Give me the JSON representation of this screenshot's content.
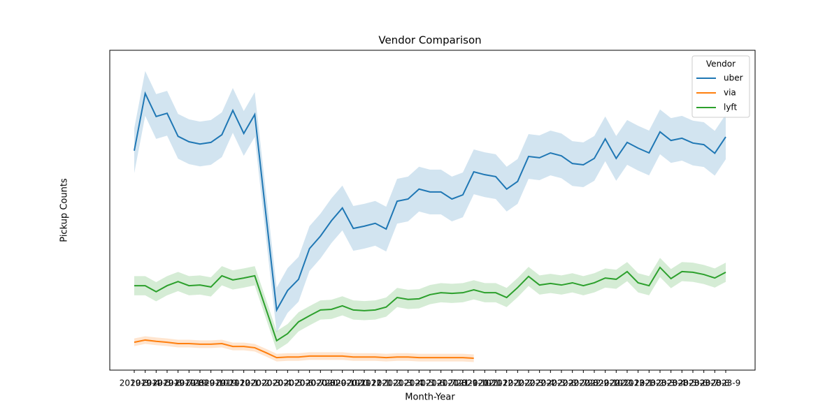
{
  "chart_data": {
    "type": "line",
    "title": "Vendor Comparison",
    "x_label": "Month-Year",
    "y_label": "Pickup Counts",
    "legend_title": "Vendor",
    "legend_position": "upper right",
    "categories": [
      "2019-3",
      "2019-4",
      "2019-5",
      "2019-6",
      "2019-7",
      "2019-8",
      "2019-9",
      "2019-10",
      "2019-11",
      "2019-12",
      "2020-1",
      "2020-2",
      "2020-3",
      "2020-4",
      "2020-5",
      "2020-6",
      "2020-7",
      "2020-8",
      "2020-9",
      "2020-10",
      "2020-11",
      "2020-12",
      "2021-1",
      "2021-2",
      "2021-3",
      "2021-4",
      "2021-5",
      "2021-6",
      "2021-7",
      "2021-8",
      "2021-9",
      "2021-10",
      "2021-11",
      "2021-12",
      "2022-1",
      "2022-2",
      "2022-3",
      "2022-4",
      "2022-5",
      "2022-6",
      "2022-7",
      "2022-8",
      "2022-9",
      "2022-10",
      "2022-11",
      "2022-12",
      "2023-1",
      "2023-2",
      "2023-3",
      "2023-4",
      "2023-5",
      "2023-6",
      "2023-7",
      "2023-8",
      "2023-9"
    ],
    "ylim": [
      0,
      100
    ],
    "series": [
      {
        "name": "uber",
        "color": "#1f77b4",
        "band": 7,
        "values": [
          68.6,
          86.5,
          79.3,
          80.3,
          73.1,
          71.4,
          70.7,
          71.2,
          73.6,
          81.2,
          74.0,
          79.9,
          49.3,
          18.8,
          24.9,
          28.4,
          38.0,
          41.9,
          46.7,
          50.7,
          44.3,
          45.0,
          45.9,
          44.1,
          52.8,
          53.5,
          56.6,
          55.7,
          55.7,
          53.5,
          54.8,
          62.0,
          61.1,
          60.5,
          56.6,
          59.0,
          66.8,
          66.4,
          67.9,
          67.0,
          64.6,
          64.2,
          66.2,
          72.3,
          66.2,
          71.2,
          69.4,
          67.9,
          74.5,
          71.8,
          72.5,
          71.0,
          70.5,
          67.8,
          72.9
        ]
      },
      {
        "name": "via",
        "color": "#ff7f0e",
        "band": 1.2,
        "values": [
          8.7,
          9.4,
          9.0,
          8.7,
          8.3,
          8.3,
          8.1,
          8.1,
          8.3,
          7.4,
          7.4,
          7.0,
          5.5,
          3.9,
          4.1,
          4.1,
          4.4,
          4.4,
          4.4,
          4.4,
          4.1,
          4.1,
          4.1,
          3.9,
          4.1,
          4.1,
          3.9,
          3.9,
          3.9,
          3.9,
          3.9,
          3.7,
          null,
          null,
          null,
          null,
          null,
          null,
          null,
          null,
          null,
          null,
          null,
          null,
          null,
          null,
          null,
          null,
          null,
          null,
          null,
          null,
          null,
          null,
          null
        ]
      },
      {
        "name": "lyft",
        "color": "#2ca02c",
        "band": 3,
        "values": [
          26.4,
          26.4,
          24.5,
          26.4,
          27.7,
          26.4,
          26.6,
          26.0,
          29.5,
          28.2,
          28.8,
          29.5,
          19.4,
          9.2,
          11.4,
          15.1,
          17.0,
          18.8,
          19.0,
          20.1,
          18.8,
          18.6,
          18.8,
          19.7,
          22.7,
          22.1,
          22.3,
          23.6,
          24.2,
          24.0,
          24.2,
          25.1,
          24.2,
          24.2,
          22.7,
          25.8,
          29.3,
          26.6,
          27.1,
          26.6,
          27.3,
          26.4,
          27.3,
          28.8,
          28.4,
          30.8,
          27.3,
          26.4,
          32.1,
          28.6,
          30.8,
          30.6,
          29.9,
          28.8,
          30.6
        ]
      }
    ]
  }
}
